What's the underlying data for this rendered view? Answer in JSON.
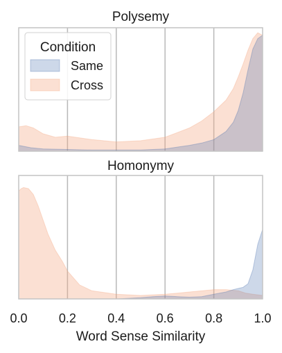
{
  "chart_data": {
    "type": "area",
    "xlabel": "Word Sense Similarity",
    "xlim": [
      0.0,
      1.0
    ],
    "xticks": [
      "0.0",
      "0.2",
      "0.4",
      "0.6",
      "0.8",
      "1.0"
    ],
    "xtick_values": [
      0.0,
      0.2,
      0.4,
      0.6,
      0.8,
      1.0
    ],
    "grid": true,
    "colors": {
      "Same": "#4c72b0",
      "Cross": "#f4a582",
      "grid": "#b8b8b8",
      "frame": "#c4c4c4"
    },
    "legend": {
      "title": "Condition",
      "placement": "top-left",
      "panel": "Polysemy",
      "entries": [
        "Same",
        "Cross"
      ]
    },
    "panels": [
      {
        "title": "Polysemy",
        "ylim": [
          0,
          1.0
        ],
        "series": [
          {
            "name": "Same",
            "x": [
              0.0,
              0.05,
              0.1,
              0.2,
              0.3,
              0.4,
              0.5,
              0.6,
              0.7,
              0.75,
              0.8,
              0.85,
              0.88,
              0.9,
              0.92,
              0.94,
              0.96,
              0.98,
              1.0
            ],
            "density": [
              0.05,
              0.03,
              0.02,
              0.015,
              0.01,
              0.01,
              0.01,
              0.02,
              0.05,
              0.07,
              0.1,
              0.17,
              0.25,
              0.35,
              0.5,
              0.7,
              0.88,
              0.97,
              1.0
            ]
          },
          {
            "name": "Cross",
            "x": [
              0.0,
              0.03,
              0.06,
              0.1,
              0.15,
              0.2,
              0.3,
              0.4,
              0.5,
              0.6,
              0.7,
              0.75,
              0.8,
              0.85,
              0.88,
              0.9,
              0.92,
              0.94,
              0.96,
              0.98,
              1.0
            ],
            "density": [
              0.21,
              0.22,
              0.2,
              0.15,
              0.12,
              0.13,
              0.1,
              0.08,
              0.09,
              0.12,
              0.2,
              0.26,
              0.34,
              0.44,
              0.54,
              0.64,
              0.75,
              0.87,
              0.97,
              1.02,
              1.0
            ]
          }
        ]
      },
      {
        "title": "Homonymy",
        "ylim": [
          0,
          1.0
        ],
        "series": [
          {
            "name": "Same",
            "x": [
              0.0,
              0.2,
              0.4,
              0.5,
              0.55,
              0.6,
              0.65,
              0.7,
              0.75,
              0.8,
              0.85,
              0.88,
              0.9,
              0.92,
              0.94,
              0.96,
              0.98,
              1.0
            ],
            "density": [
              0.0,
              0.0,
              0.0,
              0.01,
              0.02,
              0.025,
              0.02,
              0.015,
              0.02,
              0.04,
              0.06,
              0.08,
              0.09,
              0.1,
              0.13,
              0.25,
              0.47,
              0.6
            ]
          },
          {
            "name": "Cross",
            "x": [
              0.0,
              0.01,
              0.02,
              0.04,
              0.06,
              0.08,
              0.1,
              0.12,
              0.15,
              0.18,
              0.2,
              0.25,
              0.3,
              0.4,
              0.5,
              0.6,
              0.7,
              0.8,
              0.85,
              0.9,
              0.93,
              0.96,
              1.0
            ],
            "density": [
              0.93,
              0.95,
              0.96,
              0.95,
              0.9,
              0.8,
              0.68,
              0.56,
              0.42,
              0.32,
              0.24,
              0.12,
              0.07,
              0.04,
              0.03,
              0.04,
              0.06,
              0.08,
              0.08,
              0.07,
              0.05,
              0.04,
              0.03
            ]
          }
        ]
      }
    ]
  }
}
